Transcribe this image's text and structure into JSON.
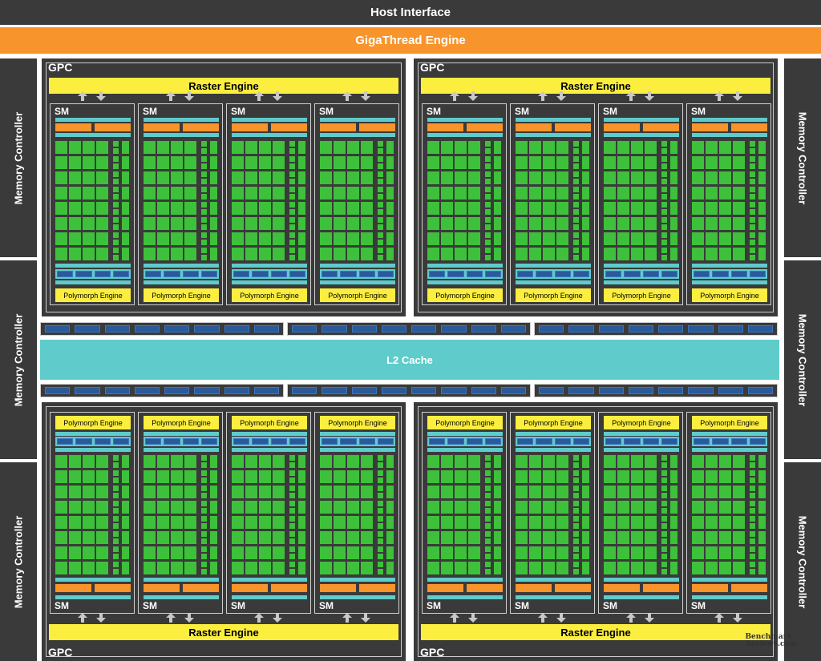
{
  "header": {
    "host_interface": "Host Interface",
    "gigathread": "GigaThread Engine"
  },
  "memory_controller_label": "Memory Controller",
  "gpc_label": "GPC",
  "raster_engine_label": "Raster Engine",
  "sm_label": "SM",
  "polymorph_engine_label": "Polymorph Engine",
  "l2_cache_label": "L2 Cache",
  "watermark": {
    "line1": "Benchmark",
    "line2": "Reviews.com"
  },
  "colors": {
    "dark_block": "#3a3a3a",
    "gigathread": "#f7942b",
    "raster": "#fbee3f",
    "core": "#3ec13a",
    "cache": "#5fcbcb",
    "register": "#2a5a9a"
  },
  "icons": {
    "up": "arrow-up-icon",
    "down": "arrow-down-icon"
  }
}
